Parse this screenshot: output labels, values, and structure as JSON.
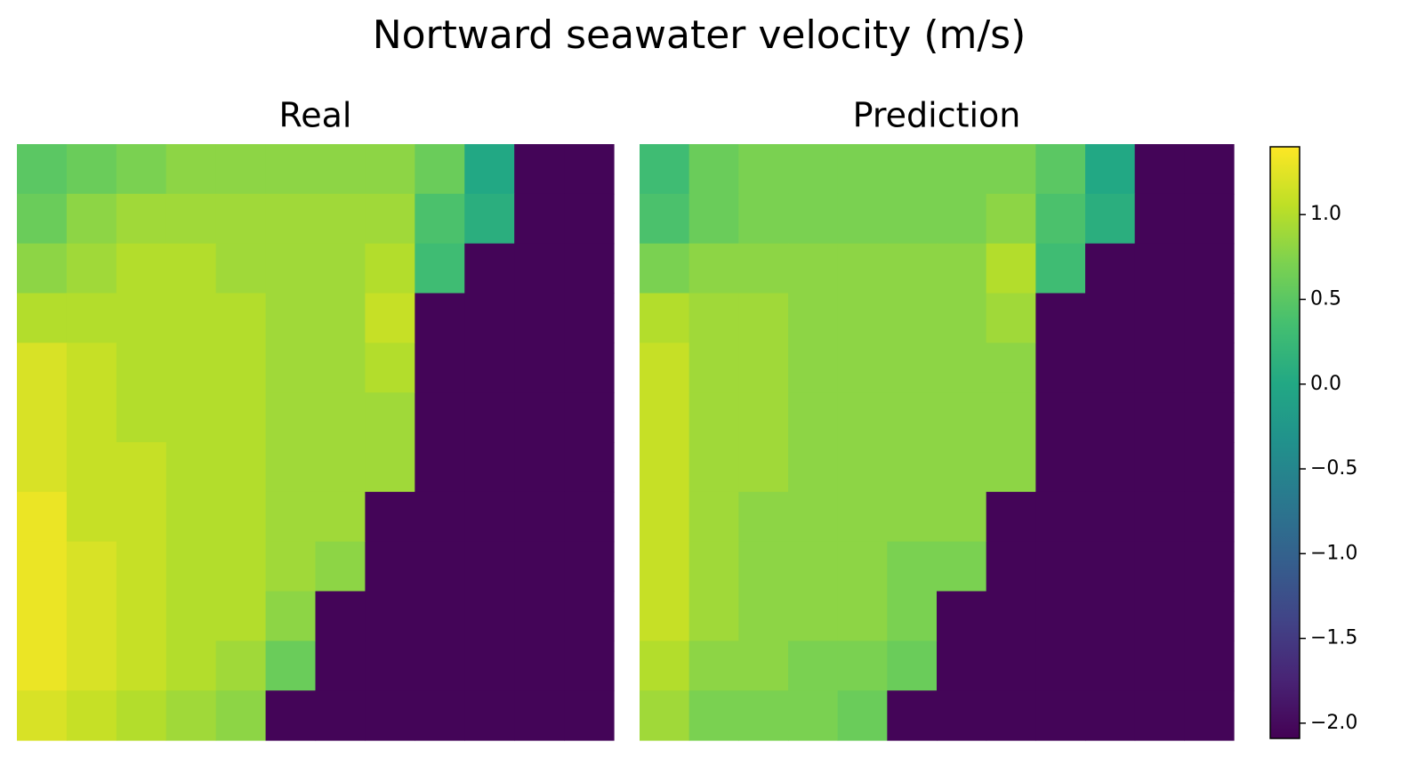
{
  "title": "Nortward seawater velocity (m/s)",
  "colormap": "viridis",
  "colorbar": {
    "lim": [
      -2.09,
      1.4
    ],
    "ticks": [
      {
        "value": -2.0,
        "label": "−2.0"
      },
      {
        "value": -1.5,
        "label": "−1.5"
      },
      {
        "value": -1.0,
        "label": "−1.0"
      },
      {
        "value": -0.5,
        "label": "−0.5"
      },
      {
        "value": 0,
        "label": "0.0"
      },
      0.5,
      {
        "value": 1.0,
        "label": "1.0"
      }
    ]
  },
  "chart_data": [
    {
      "type": "heatmap",
      "title": "Real",
      "values": [
        [
          0.5,
          0.6,
          0.7,
          0.8,
          0.8,
          0.8,
          0.8,
          0.8,
          0.6,
          0.0,
          -2.05,
          -2.05
        ],
        [
          0.6,
          0.8,
          0.9,
          0.9,
          0.9,
          0.9,
          0.9,
          0.9,
          0.4,
          0.1,
          -2.05,
          -2.05
        ],
        [
          0.8,
          0.9,
          1.0,
          1.0,
          0.9,
          0.9,
          0.9,
          1.0,
          0.3,
          -2.05,
          -2.05,
          -2.05
        ],
        [
          1.0,
          1.0,
          1.0,
          1.0,
          1.0,
          0.9,
          0.9,
          1.1,
          -2.05,
          -2.05,
          -2.05,
          -2.05
        ],
        [
          1.2,
          1.1,
          1.0,
          1.0,
          1.0,
          0.9,
          0.9,
          1.0,
          -2.05,
          -2.05,
          -2.05,
          -2.05
        ],
        [
          1.2,
          1.1,
          1.0,
          1.0,
          1.0,
          0.9,
          0.9,
          0.9,
          -2.05,
          -2.05,
          -2.05,
          -2.05
        ],
        [
          1.2,
          1.1,
          1.1,
          1.0,
          1.0,
          0.9,
          0.9,
          0.9,
          -2.05,
          -2.05,
          -2.05,
          -2.05
        ],
        [
          1.3,
          1.1,
          1.1,
          1.0,
          1.0,
          0.9,
          0.9,
          -2.05,
          -2.05,
          -2.05,
          -2.05,
          -2.05
        ],
        [
          1.3,
          1.2,
          1.1,
          1.0,
          1.0,
          0.9,
          0.8,
          -2.05,
          -2.05,
          -2.05,
          -2.05,
          -2.05
        ],
        [
          1.3,
          1.2,
          1.1,
          1.0,
          1.0,
          0.8,
          -2.05,
          -2.05,
          -2.05,
          -2.05,
          -2.05,
          -2.05
        ],
        [
          1.3,
          1.2,
          1.1,
          1.0,
          0.9,
          0.6,
          -2.05,
          -2.05,
          -2.05,
          -2.05,
          -2.05,
          -2.05
        ],
        [
          1.2,
          1.1,
          1.0,
          0.9,
          0.8,
          -2.05,
          -2.05,
          -2.05,
          -2.05,
          -2.05,
          -2.05,
          -2.05
        ]
      ]
    },
    {
      "type": "heatmap",
      "title": "Prediction",
      "values": [
        [
          0.3,
          0.6,
          0.7,
          0.7,
          0.7,
          0.7,
          0.7,
          0.7,
          0.5,
          0.0,
          -2.05,
          -2.05
        ],
        [
          0.4,
          0.6,
          0.7,
          0.7,
          0.7,
          0.7,
          0.7,
          0.8,
          0.4,
          0.1,
          -2.05,
          -2.05
        ],
        [
          0.7,
          0.8,
          0.8,
          0.8,
          0.8,
          0.8,
          0.8,
          1.0,
          0.3,
          -2.05,
          -2.05,
          -2.05
        ],
        [
          1.0,
          0.9,
          0.9,
          0.8,
          0.8,
          0.8,
          0.8,
          0.9,
          -2.05,
          -2.05,
          -2.05,
          -2.05
        ],
        [
          1.1,
          0.9,
          0.9,
          0.8,
          0.8,
          0.8,
          0.8,
          0.8,
          -2.05,
          -2.05,
          -2.05,
          -2.05
        ],
        [
          1.1,
          0.9,
          0.9,
          0.8,
          0.8,
          0.8,
          0.8,
          0.8,
          -2.05,
          -2.05,
          -2.05,
          -2.05
        ],
        [
          1.1,
          0.9,
          0.9,
          0.8,
          0.8,
          0.8,
          0.8,
          0.8,
          -2.05,
          -2.05,
          -2.05,
          -2.05
        ],
        [
          1.1,
          0.9,
          0.8,
          0.8,
          0.8,
          0.8,
          0.8,
          -2.05,
          -2.05,
          -2.05,
          -2.05,
          -2.05
        ],
        [
          1.1,
          0.9,
          0.8,
          0.8,
          0.8,
          0.7,
          0.7,
          -2.05,
          -2.05,
          -2.05,
          -2.05,
          -2.05
        ],
        [
          1.1,
          0.9,
          0.8,
          0.8,
          0.8,
          0.7,
          -2.05,
          -2.05,
          -2.05,
          -2.05,
          -2.05,
          -2.05
        ],
        [
          1.0,
          0.8,
          0.8,
          0.7,
          0.7,
          0.6,
          -2.05,
          -2.05,
          -2.05,
          -2.05,
          -2.05,
          -2.05
        ],
        [
          0.9,
          0.7,
          0.7,
          0.7,
          0.6,
          -2.05,
          -2.05,
          -2.05,
          -2.05,
          -2.05,
          -2.05,
          -2.05
        ]
      ]
    }
  ]
}
